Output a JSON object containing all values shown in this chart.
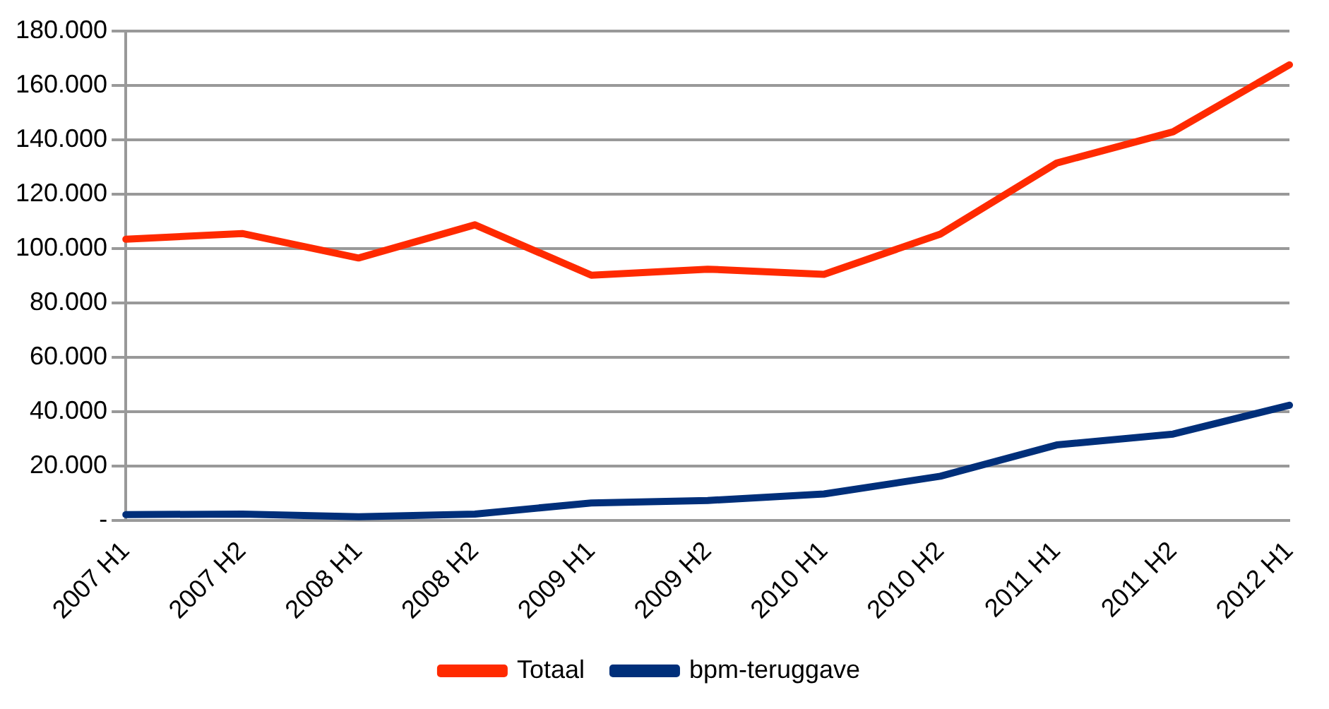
{
  "chart_data": {
    "type": "line",
    "categories": [
      "2007 H1",
      "2007 H2",
      "2008 H1",
      "2008 H2",
      "2009 H1",
      "2009 H2",
      "2010 H1",
      "2010 H2",
      "2011 H1",
      "2011 H2",
      "2012 H1"
    ],
    "series": [
      {
        "name": "Totaal",
        "color": "#ff2a00",
        "values": [
          103400,
          105500,
          96500,
          108700,
          90200,
          92400,
          90500,
          105300,
          131400,
          142900,
          167500
        ]
      },
      {
        "name": "bpm-teruggave",
        "color": "#002f7a",
        "values": [
          2200,
          2400,
          1400,
          2400,
          6500,
          7400,
          9800,
          16300,
          27800,
          31800,
          42400
        ]
      }
    ],
    "ylim": [
      0,
      180000
    ],
    "yticks": [
      {
        "value": 0,
        "label": "-"
      },
      {
        "value": 20000,
        "label": "20.000"
      },
      {
        "value": 40000,
        "label": "40.000"
      },
      {
        "value": 60000,
        "label": "60.000"
      },
      {
        "value": 80000,
        "label": "80.000"
      },
      {
        "value": 100000,
        "label": "100.000"
      },
      {
        "value": 120000,
        "label": "120.000"
      },
      {
        "value": 140000,
        "label": "140.000"
      },
      {
        "value": 160000,
        "label": "160.000"
      },
      {
        "value": 180000,
        "label": "180.000"
      }
    ],
    "grid": "y",
    "legend": "bottom",
    "marker": "none",
    "line_style": "solid"
  }
}
